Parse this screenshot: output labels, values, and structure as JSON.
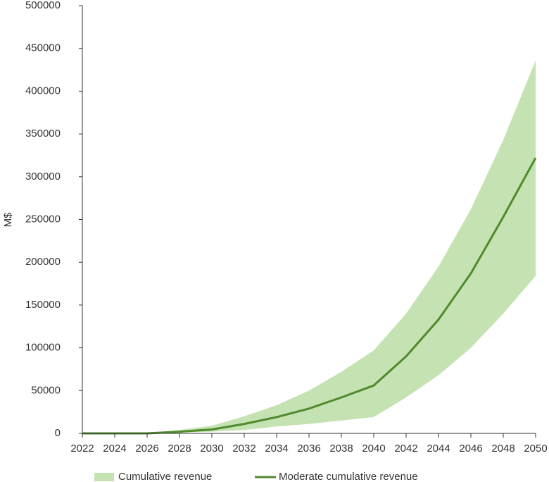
{
  "chart_data": {
    "type": "area-line",
    "ylabel": "M$",
    "x": [
      2022,
      2024,
      2026,
      2028,
      2030,
      2032,
      2034,
      2036,
      2038,
      2040,
      2042,
      2044,
      2046,
      2048,
      2050
    ],
    "series": [
      {
        "name": "Cumulative revenue",
        "color": "#c5e3b2",
        "low": [
          0,
          0,
          0,
          1000,
          2000,
          4000,
          8000,
          11000,
          15000,
          19000,
          42000,
          68000,
          100000,
          140000,
          184000
        ],
        "high": [
          0,
          0,
          500,
          4000,
          9000,
          20000,
          33000,
          50000,
          72000,
          97000,
          140000,
          195000,
          262000,
          343000,
          436000
        ]
      },
      {
        "name": "Moderate cumulative revenue",
        "color": "#4f8a2c",
        "values": [
          0,
          0,
          0,
          2000,
          4500,
          11000,
          19000,
          29000,
          42000,
          56000,
          90000,
          133000,
          187000,
          253000,
          322000
        ]
      }
    ],
    "xlim": [
      2022,
      2050
    ],
    "xticks": [
      2022,
      2024,
      2026,
      2028,
      2030,
      2032,
      2034,
      2036,
      2038,
      2040,
      2042,
      2044,
      2046,
      2048,
      2050
    ],
    "ylim": [
      0,
      500000
    ],
    "yticks": [
      0,
      50000,
      100000,
      150000,
      200000,
      250000,
      300000,
      350000,
      400000,
      450000,
      500000
    ],
    "grid": false
  }
}
